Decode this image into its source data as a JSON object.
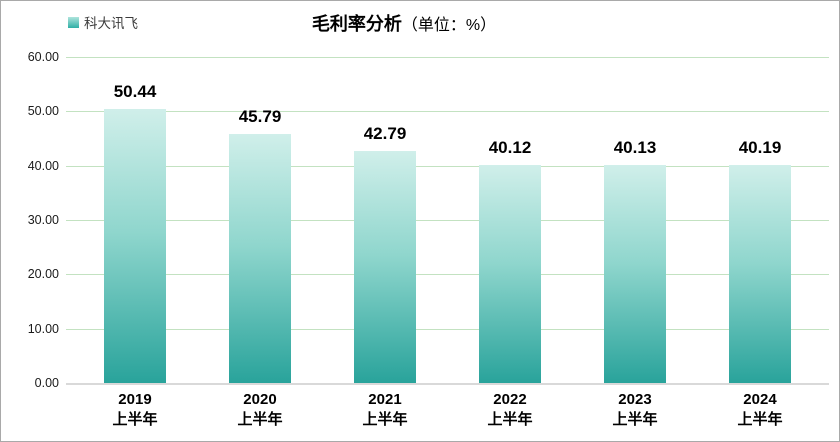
{
  "legend": {
    "label": "科大讯飞"
  },
  "title": {
    "main": "毛利率分析",
    "unit": "（单位：%）"
  },
  "colors": {
    "bar_gradient_top": "#d0efea",
    "bar_gradient_bottom": "#29a39b",
    "legend_swatch": "#2fafa6",
    "gridline": "#c3e2c1",
    "axis_line": "#d9d9d9",
    "text": "#000000",
    "window_border": "#a9a9a9"
  },
  "chart_data": {
    "type": "bar",
    "title": "毛利率分析（单位：%）",
    "legend_entries": [
      "科大讯飞"
    ],
    "legend_position": "top-left",
    "categories": [
      [
        "2019",
        "上半年"
      ],
      [
        "2020",
        "上半年"
      ],
      [
        "2021",
        "上半年"
      ],
      [
        "2022",
        "上半年"
      ],
      [
        "2023",
        "上半年"
      ],
      [
        "2024",
        "上半年"
      ]
    ],
    "series": [
      {
        "name": "科大讯飞",
        "values": [
          50.44,
          45.79,
          42.79,
          40.12,
          40.13,
          40.19
        ]
      }
    ],
    "value_labels": [
      "50.44",
      "45.79",
      "42.79",
      "40.12",
      "40.13",
      "40.19"
    ],
    "ylabel": "",
    "xlabel": "",
    "ylim": [
      0,
      60
    ],
    "ytick_labels": [
      "60.00",
      "50.00",
      "40.00",
      "30.00",
      "20.00",
      "10.00",
      "0.00"
    ],
    "grid": true
  }
}
